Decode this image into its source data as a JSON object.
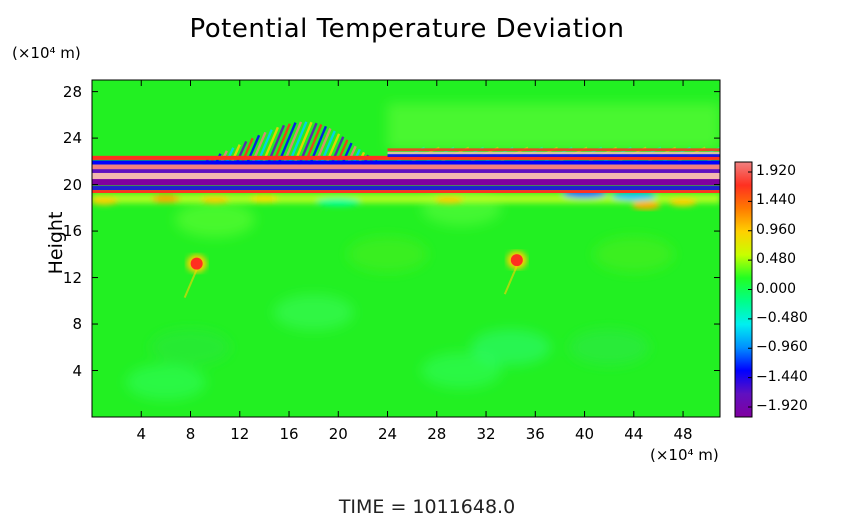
{
  "chart_data": {
    "type": "heatmap",
    "title": "Potential Temperature Deviation",
    "ylabel": "Height",
    "y_unit": "(×10⁴ m)",
    "x_unit": "(×10⁴ m)",
    "x_ticks": [
      "4",
      "8",
      "12",
      "16",
      "20",
      "24",
      "28",
      "32",
      "36",
      "40",
      "44",
      "48"
    ],
    "y_ticks": [
      "4",
      "8",
      "12",
      "16",
      "20",
      "24",
      "28"
    ],
    "xlim": [
      0,
      51
    ],
    "ylim": [
      0,
      29
    ],
    "colorbar": {
      "labels": [
        "1.920",
        "1.440",
        "0.960",
        "0.480",
        "0.000",
        "−0.480",
        "−0.960",
        "−1.440",
        "−1.920"
      ],
      "range": [
        -1.92,
        1.92
      ],
      "colors": [
        "#f08080",
        "#ff3020",
        "#ff7a00",
        "#ffd000",
        "#c8ff00",
        "#22ff22",
        "#00ff88",
        "#00f0f0",
        "#0090ff",
        "#0000ff",
        "#6010c0",
        "#8000a0"
      ]
    },
    "background_value": 0.0,
    "features": {
      "inversion_band_height": 20.5,
      "wave_packet_x_range": [
        4,
        26
      ],
      "hot_spots": [
        {
          "x": 8.5,
          "y": 13.2
        },
        {
          "x": 34.5,
          "y": 13.5
        }
      ]
    },
    "grid": false,
    "legend": "right"
  },
  "footer": {
    "time_text": "TIME  =  1011648.0"
  }
}
